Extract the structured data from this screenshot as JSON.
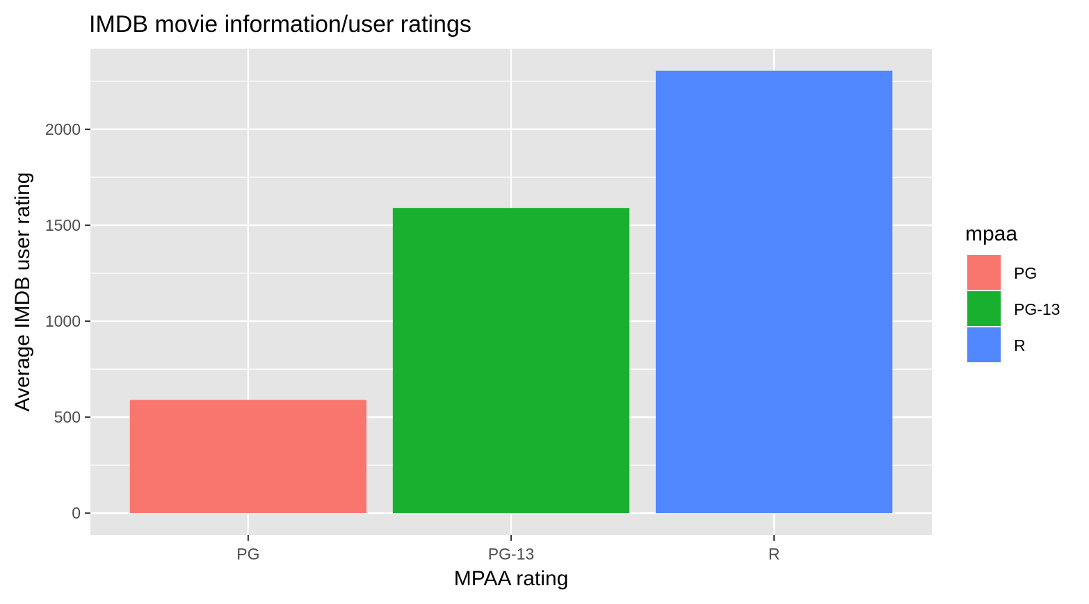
{
  "chart_data": {
    "type": "bar",
    "title": "IMDB movie information/user ratings",
    "xlabel": "MPAA rating",
    "ylabel": "Average IMDB user rating",
    "categories": [
      "PG",
      "PG-13",
      "R"
    ],
    "values": [
      590,
      1590,
      2305
    ],
    "colors": [
      "#F8766D",
      "#1AB02F",
      "#5087FF"
    ],
    "ylim": [
      -115,
      2420
    ],
    "yticks": [
      0,
      500,
      1000,
      1500,
      2000
    ],
    "yticklabels": [
      "0",
      "500",
      "1000",
      "1500",
      "2000"
    ],
    "grid": true,
    "legend": {
      "title": "mpaa",
      "position": "right",
      "items": [
        {
          "label": "PG",
          "color": "#F8766D"
        },
        {
          "label": "PG-13",
          "color": "#1AB02F"
        },
        {
          "label": "R",
          "color": "#5087FF"
        }
      ]
    },
    "panel_background": "#E5E5E5",
    "grid_color": "#FFFFFF"
  }
}
